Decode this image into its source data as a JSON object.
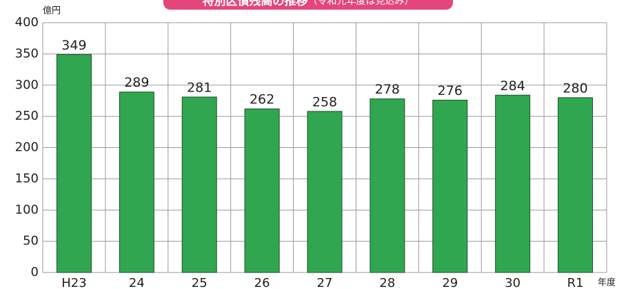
{
  "chart_data": {
    "type": "bar",
    "title": "特別区債残高の推移",
    "title_note": "（令和元年度は見込み）",
    "y_unit": "億円",
    "x_unit": "年度",
    "categories": [
      "H23",
      "24",
      "25",
      "26",
      "27",
      "28",
      "29",
      "30",
      "R1"
    ],
    "values": [
      349,
      289,
      281,
      262,
      258,
      278,
      276,
      284,
      280
    ],
    "color": "#31a650",
    "ylim": [
      0,
      400
    ],
    "yticks": [
      0,
      50,
      100,
      150,
      200,
      250,
      300,
      350,
      400
    ],
    "grid": true
  }
}
